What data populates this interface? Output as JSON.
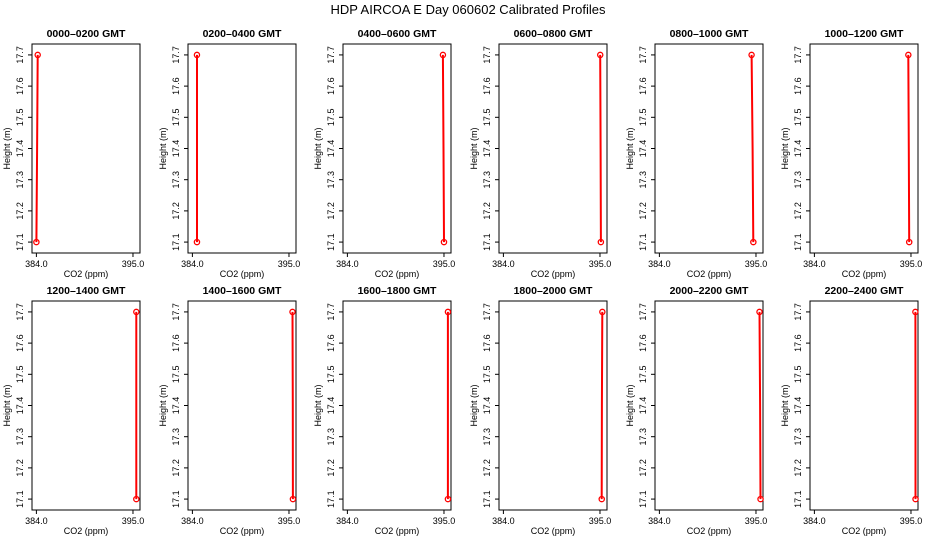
{
  "title": "HDP  AIRCOA E  Day 060602  Calibrated Profiles",
  "chart_data": {
    "type": "line",
    "title": "HDP  AIRCOA E  Day 060602  Calibrated Profiles",
    "xlabel": "CO2 (ppm)",
    "ylabel": "Height (m)",
    "xlim": [
      383.5,
      395.8
    ],
    "ylim": [
      17.065,
      17.735
    ],
    "xticks": [
      384.0,
      395.0
    ],
    "xtick_labels": [
      "384.0",
      "395.0"
    ],
    "yticks": [
      17.1,
      17.2,
      17.3,
      17.4,
      17.5,
      17.6,
      17.7
    ],
    "ytick_labels": [
      "17.1",
      "17.2",
      "17.3",
      "17.4",
      "17.5",
      "17.6",
      "17.7"
    ],
    "grid": false,
    "series_color": "#ff0000",
    "panels": [
      {
        "title": "0000–0200 GMT",
        "points": [
          {
            "x": 384.0,
            "y": 17.1
          },
          {
            "x": 384.08,
            "y": 17.4
          },
          {
            "x": 384.15,
            "y": 17.7
          }
        ]
      },
      {
        "title": "0200–0400 GMT",
        "points": [
          {
            "x": 384.52,
            "y": 17.1
          },
          {
            "x": 384.52,
            "y": 17.4
          },
          {
            "x": 384.52,
            "y": 17.7
          }
        ]
      },
      {
        "title": "0400–0600 GMT",
        "points": [
          {
            "x": 395.0,
            "y": 17.1
          },
          {
            "x": 394.95,
            "y": 17.4
          },
          {
            "x": 394.88,
            "y": 17.7
          }
        ]
      },
      {
        "title": "0600–0800 GMT",
        "points": [
          {
            "x": 395.1,
            "y": 17.1
          },
          {
            "x": 395.07,
            "y": 17.4
          },
          {
            "x": 395.03,
            "y": 17.7
          }
        ]
      },
      {
        "title": "0800–1000 GMT",
        "points": [
          {
            "x": 394.7,
            "y": 17.1
          },
          {
            "x": 394.62,
            "y": 17.4
          },
          {
            "x": 394.5,
            "y": 17.7
          }
        ]
      },
      {
        "title": "1000–1200 GMT",
        "points": [
          {
            "x": 394.8,
            "y": 17.1
          },
          {
            "x": 394.75,
            "y": 17.4
          },
          {
            "x": 394.7,
            "y": 17.7
          }
        ]
      },
      {
        "title": "1200–1400 GMT",
        "points": [
          {
            "x": 395.38,
            "y": 17.1
          },
          {
            "x": 395.38,
            "y": 17.4
          },
          {
            "x": 395.38,
            "y": 17.7
          }
        ]
      },
      {
        "title": "1400–1600 GMT",
        "points": [
          {
            "x": 395.45,
            "y": 17.1
          },
          {
            "x": 395.43,
            "y": 17.4
          },
          {
            "x": 395.4,
            "y": 17.7
          }
        ]
      },
      {
        "title": "1600–1800 GMT",
        "points": [
          {
            "x": 395.45,
            "y": 17.1
          },
          {
            "x": 395.45,
            "y": 17.4
          },
          {
            "x": 395.45,
            "y": 17.7
          }
        ]
      },
      {
        "title": "1800–2000 GMT",
        "points": [
          {
            "x": 395.2,
            "y": 17.1
          },
          {
            "x": 395.22,
            "y": 17.4
          },
          {
            "x": 395.27,
            "y": 17.7
          }
        ]
      },
      {
        "title": "2000–2200 GMT",
        "points": [
          {
            "x": 395.52,
            "y": 17.1
          },
          {
            "x": 395.47,
            "y": 17.4
          },
          {
            "x": 395.4,
            "y": 17.7
          }
        ]
      },
      {
        "title": "2200–2400 GMT",
        "points": [
          {
            "x": 395.52,
            "y": 17.1
          },
          {
            "x": 395.52,
            "y": 17.4
          },
          {
            "x": 395.5,
            "y": 17.7
          }
        ]
      }
    ]
  }
}
